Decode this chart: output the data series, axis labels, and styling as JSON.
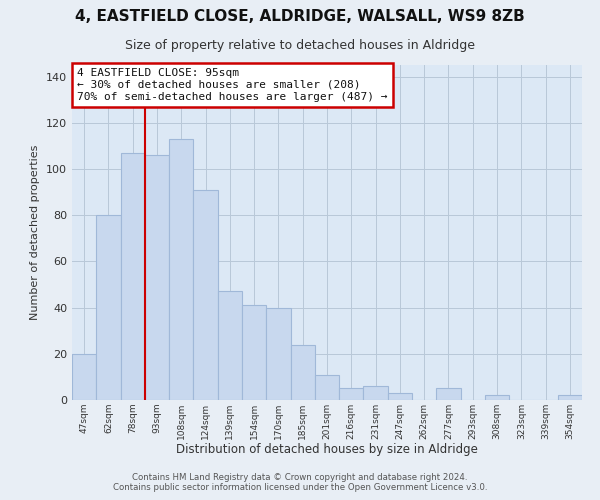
{
  "title_line1": "4, EASTFIELD CLOSE, ALDRIDGE, WALSALL, WS9 8ZB",
  "title_line2": "Size of property relative to detached houses in Aldridge",
  "xlabel": "Distribution of detached houses by size in Aldridge",
  "ylabel": "Number of detached properties",
  "categories": [
    "47sqm",
    "62sqm",
    "78sqm",
    "93sqm",
    "108sqm",
    "124sqm",
    "139sqm",
    "154sqm",
    "170sqm",
    "185sqm",
    "201sqm",
    "216sqm",
    "231sqm",
    "247sqm",
    "262sqm",
    "277sqm",
    "293sqm",
    "308sqm",
    "323sqm",
    "339sqm",
    "354sqm"
  ],
  "values": [
    20,
    80,
    107,
    106,
    113,
    91,
    47,
    41,
    40,
    24,
    11,
    5,
    6,
    3,
    0,
    5,
    0,
    2,
    0,
    0,
    2
  ],
  "bar_color": "#c8d8ee",
  "bar_edge_color": "#a0b8d8",
  "annotation_box_text": "4 EASTFIELD CLOSE: 95sqm\n← 30% of detached houses are smaller (208)\n70% of semi-detached houses are larger (487) →",
  "annotation_box_color": "#ffffff",
  "annotation_box_edge_color": "#cc0000",
  "red_line_x": 2.5,
  "ylim": [
    0,
    145
  ],
  "yticks": [
    0,
    20,
    40,
    60,
    80,
    100,
    120,
    140
  ],
  "bg_color": "#e8eef5",
  "plot_bg_color": "#dce8f5",
  "grid_color": "#b8c8d8",
  "footnote_line1": "Contains HM Land Registry data © Crown copyright and database right 2024.",
  "footnote_line2": "Contains public sector information licensed under the Open Government Licence v3.0."
}
